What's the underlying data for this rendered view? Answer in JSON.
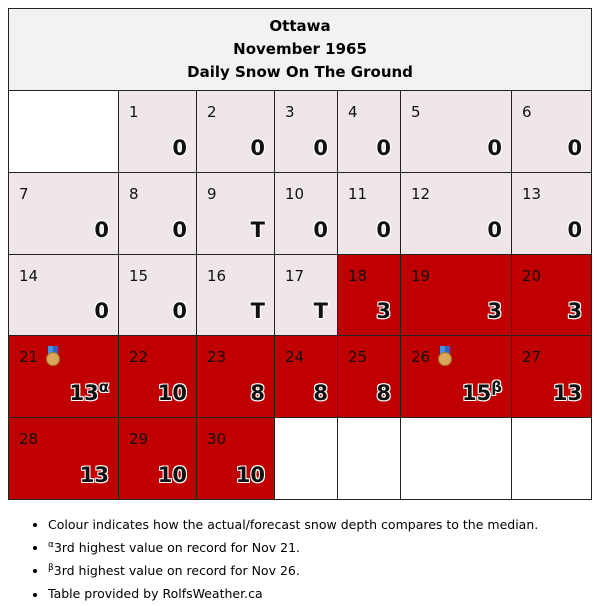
{
  "header": {
    "city": "Ottawa",
    "period": "November 1965",
    "metric": "Daily Snow On The Ground"
  },
  "weeks": [
    [
      null,
      {
        "day": "1",
        "value": "0",
        "class": "norm"
      },
      {
        "day": "2",
        "value": "0",
        "class": "norm"
      },
      {
        "day": "3",
        "value": "0",
        "class": "norm"
      },
      {
        "day": "4",
        "value": "0",
        "class": "norm"
      },
      {
        "day": "5",
        "value": "0",
        "class": "norm"
      },
      {
        "day": "6",
        "value": "0",
        "class": "norm"
      }
    ],
    [
      {
        "day": "7",
        "value": "0",
        "class": "norm"
      },
      {
        "day": "8",
        "value": "0",
        "class": "norm"
      },
      {
        "day": "9",
        "value": "T",
        "class": "norm"
      },
      {
        "day": "10",
        "value": "0",
        "class": "norm"
      },
      {
        "day": "11",
        "value": "0",
        "class": "norm"
      },
      {
        "day": "12",
        "value": "0",
        "class": "norm"
      },
      {
        "day": "13",
        "value": "0",
        "class": "norm"
      }
    ],
    [
      {
        "day": "14",
        "value": "0",
        "class": "norm"
      },
      {
        "day": "15",
        "value": "0",
        "class": "norm"
      },
      {
        "day": "16",
        "value": "T",
        "class": "norm"
      },
      {
        "day": "17",
        "value": "T",
        "class": "norm"
      },
      {
        "day": "18",
        "value": "3",
        "class": "above"
      },
      {
        "day": "19",
        "value": "3",
        "class": "above"
      },
      {
        "day": "20",
        "value": "3",
        "class": "above"
      }
    ],
    [
      {
        "day": "21",
        "value": "13",
        "note": "α",
        "medal": "medal-icon",
        "class": "above"
      },
      {
        "day": "22",
        "value": "10",
        "class": "above"
      },
      {
        "day": "23",
        "value": "8",
        "class": "above"
      },
      {
        "day": "24",
        "value": "8",
        "class": "above"
      },
      {
        "day": "25",
        "value": "8",
        "class": "above"
      },
      {
        "day": "26",
        "value": "15",
        "note": "β",
        "medal": "medal-icon",
        "class": "above"
      },
      {
        "day": "27",
        "value": "13",
        "class": "above"
      }
    ],
    [
      {
        "day": "28",
        "value": "13",
        "class": "above"
      },
      {
        "day": "29",
        "value": "10",
        "class": "above"
      },
      {
        "day": "30",
        "value": "10",
        "class": "above"
      },
      null,
      null,
      null,
      null
    ]
  ],
  "colors": {
    "normal": "#eee6e8",
    "above_median": "#c00000",
    "header_bg": "#f2f2f2"
  },
  "notes": [
    {
      "mark": "",
      "text": "Colour indicates how the actual/forecast snow depth compares to the median."
    },
    {
      "mark": "α",
      "text": "3rd highest value on record for Nov 21."
    },
    {
      "mark": "β",
      "text": "3rd highest value on record for Nov 26."
    },
    {
      "mark": "",
      "text": "Table provided by RolfsWeather.ca"
    }
  ]
}
